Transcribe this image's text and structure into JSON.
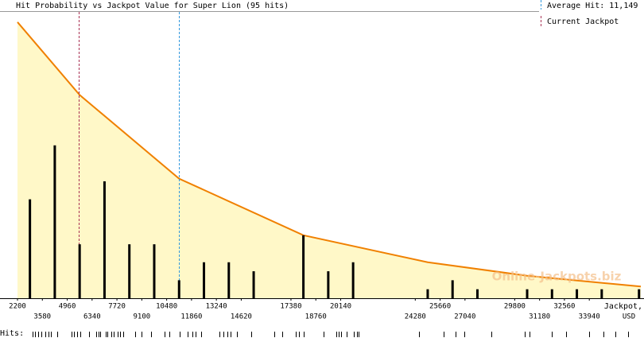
{
  "chart_data": {
    "type": "bar",
    "title": "Hit Probability vs Jackpot Value for Super Lion (95 hits)",
    "x_label": [
      "Jackpot,",
      "USD"
    ],
    "x": [
      2890,
      4270,
      5650,
      7030,
      8410,
      9790,
      11170,
      12550,
      13930,
      15310,
      18070,
      19450,
      20830,
      24970,
      26350,
      27730,
      30490,
      31870,
      33250,
      34630,
      36700
    ],
    "values": [
      11,
      17,
      6,
      13,
      6,
      6,
      2,
      4,
      4,
      3,
      7,
      3,
      4,
      1,
      2,
      1,
      1,
      1,
      1,
      1,
      1
    ],
    "color": "#000000",
    "curve": {
      "x": [
        2200,
        5650,
        11170,
        18070,
        24970,
        30490,
        36800
      ],
      "values": [
        30.7,
        22.6,
        13.3,
        7.0,
        4.0,
        2.5,
        1.3
      ],
      "color": "#f08000",
      "fill": "#fff8c8"
    },
    "average_hit": {
      "value": 11149,
      "label": "Average Hit: 11,149",
      "color": "#3399dd"
    },
    "current_jackpot": {
      "value": 5600,
      "label": "Current Jackpot",
      "color": "#aa3355"
    },
    "watermark": "Online-Jackpots.biz",
    "hits_label": "Hits:",
    "hits": [
      3040,
      3170,
      3350,
      3520,
      3750,
      3920,
      4050,
      4410,
      5200,
      5330,
      5510,
      5690,
      6170,
      6570,
      6700,
      6790,
      7100,
      7190,
      7410,
      7540,
      7760,
      7890,
      8070,
      8730,
      9080,
      9610,
      10360,
      10630,
      11200,
      11640,
      11910,
      12090,
      12390,
      13410,
      13630,
      13850,
      14030,
      14380,
      15170,
      16450,
      16900,
      17650,
      17820,
      18090,
      19190,
      19900,
      20030,
      20160,
      20470,
      20870,
      21040,
      21130,
      24490,
      25850,
      26520,
      27000,
      28500,
      30360,
      30620,
      31860,
      32650,
      33930,
      34720,
      35390,
      36090
    ],
    "xlim": [
      2200,
      36800
    ],
    "ylim": [
      0,
      32.1
    ],
    "xticks": [
      2200,
      3580,
      4960,
      6340,
      7720,
      9100,
      10480,
      11860,
      13240,
      14620,
      17380,
      18760,
      20140,
      24280,
      25660,
      27040,
      29800,
      31180,
      32560,
      33940
    ]
  }
}
